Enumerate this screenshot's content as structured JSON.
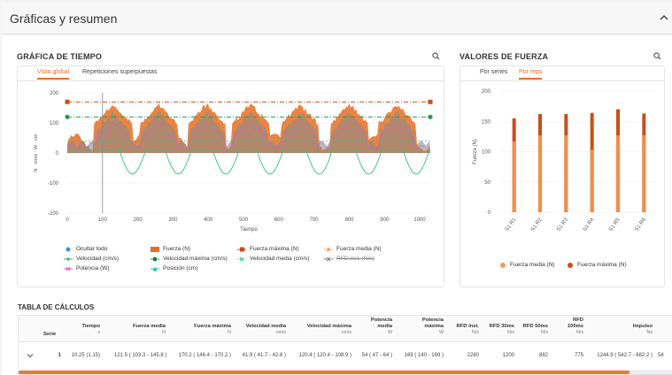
{
  "panel": {
    "title": "Gráficas y resumen"
  },
  "time_chart": {
    "title": "GRÁFICA DE TIEMPO",
    "tabs": [
      "Vista global",
      "Repeticiones superpuestas"
    ],
    "active_tab": 0,
    "ylabel": "N · cm/s · W · cm",
    "xlabel": "Tiempo",
    "yticks": [
      "200",
      "100",
      "0",
      "-100",
      "-200"
    ],
    "xticks": [
      "0",
      "100",
      "200",
      "300",
      "400",
      "500",
      "600",
      "700",
      "800",
      "900",
      "1000"
    ],
    "legend": [
      {
        "label": "Ocultar todo",
        "color": "#3b8fd6",
        "marker": "dot",
        "strike": false
      },
      {
        "label": "Fuerza (N)",
        "color": "#e66f22",
        "marker": "area",
        "strike": false
      },
      {
        "label": "Fuerza máxima (N)",
        "color": "#c94e1a",
        "marker": "dash-dot",
        "strike": false
      },
      {
        "label": "Fuerza media (N)",
        "color": "#f2a56b",
        "marker": "dash",
        "strike": false
      },
      {
        "label": "Velocidad (cm/s)",
        "color": "#2ec27e",
        "marker": "line",
        "strike": false
      },
      {
        "label": "Velocidad máxima (cm/s)",
        "color": "#1f9d55",
        "marker": "dash-dot",
        "strike": false
      },
      {
        "label": "Velocidad media (cm/s)",
        "color": "#7fd9b0",
        "marker": "dash",
        "strike": false
      },
      {
        "label": "RFD inst. (N/s)",
        "color": "#777777",
        "marker": "dash-dot",
        "strike": true
      },
      {
        "label": "Potencia (W)",
        "color": "#d05ad6",
        "marker": "line",
        "strike": false
      },
      {
        "label": "Posición (cm)",
        "color": "#20c0a8",
        "marker": "line",
        "strike": false
      }
    ],
    "colors": {
      "force": "#e66f22",
      "velocity": "#2ec27e",
      "power": "#d05ad6",
      "position": "#20c0a8",
      "max_force": "#c94e1a",
      "max_vel": "#1f9d55"
    }
  },
  "force_chart": {
    "title": "VALORES DE FUERZA",
    "tabs": [
      "Por series",
      "Por reps"
    ],
    "active_tab": 1,
    "ylabel": "Fuerza (N)",
    "yticks": [
      "200",
      "150",
      "100",
      "50",
      "0"
    ],
    "legend": [
      "Fuerza media (N)",
      "Fuerza máxima (N)"
    ],
    "colors": {
      "mean": "#f39c5a",
      "max": "#c94e1a"
    }
  },
  "chart_data": [
    {
      "type": "line",
      "title": "GRÁFICA DE TIEMPO",
      "xlabel": "Tiempo",
      "ylabel": "N · cm/s · W · cm",
      "xlim": [
        0,
        1030
      ],
      "ylim": [
        -200,
        200
      ],
      "series": [
        {
          "name": "Fuerza máxima (N)",
          "values": [
            170
          ]
        },
        {
          "name": "Velocidad máxima (cm/s)",
          "values": [
            120
          ]
        },
        {
          "name": "Fuerza media (N)",
          "values": [
            121.5
          ]
        },
        {
          "name": "Velocidad media (cm/s)",
          "values": [
            41.9
          ]
        }
      ]
    },
    {
      "type": "bar",
      "title": "VALORES DE FUERZA",
      "ylabel": "Fuerza (N)",
      "categories": [
        "S1 R1",
        "S1 R2",
        "S1 R3",
        "S1 R4",
        "S1 R5",
        "S1 R6"
      ],
      "ylim": [
        0,
        200
      ],
      "series": [
        {
          "name": "Fuerza media (N)",
          "values": [
            117,
            127,
            127,
            103,
            127,
            127
          ]
        },
        {
          "name": "Fuerza máxima (N)",
          "values": [
            155,
            162,
            162,
            164,
            170,
            163
          ]
        }
      ]
    }
  ],
  "calc": {
    "title": "TABLA DE CÁLCULOS",
    "headers": [
      {
        "label": "Serie",
        "unit": ""
      },
      {
        "label": "Tiempo",
        "unit": "s"
      },
      {
        "label": "Fuerza media",
        "unit": "N"
      },
      {
        "label": "Fuerza máxima",
        "unit": "N"
      },
      {
        "label": "Velocidad media",
        "unit": "cm/s"
      },
      {
        "label": "Velocidad máxima",
        "unit": "cm/s"
      },
      {
        "label": "Potencia media",
        "unit": "W"
      },
      {
        "label": "Potencia máxima",
        "unit": "W"
      },
      {
        "label": "RFD inst.",
        "unit": "N/s"
      },
      {
        "label": "RFD 30ms",
        "unit": "N/s"
      },
      {
        "label": "RFD 50ms",
        "unit": "N/s"
      },
      {
        "label": "RFD 100ms",
        "unit": "N/s"
      },
      {
        "label": "Impulso",
        "unit": "Ns"
      }
    ],
    "row": {
      "serie": "1",
      "tiempo": "10.25 (1.15)",
      "fuerza_media": "121.5 ( 103.3 - 145.8 )",
      "fuerza_maxima": "170.2 ( 146.4 - 170.2 )",
      "vel_media": "41.9 ( 41.7 - 42.6 )",
      "vel_maxima": "120.4 ( 120.4 - 108.9 )",
      "pot_media": "54 ( 47 - 64 )",
      "pot_maxima": "169 ( 140 - 169 )",
      "rfd_inst": "2280",
      "rfd_30": "1200",
      "rfd_50": "882",
      "rfd_100": "775",
      "impulso": "1244.9 ( 542.7 - 682.2 )",
      "extra": "54"
    }
  }
}
